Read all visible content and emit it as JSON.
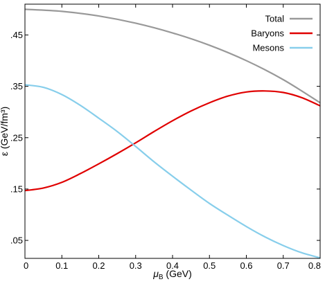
{
  "chart_data": {
    "type": "line",
    "xlabel": "μ",
    "xlabel_sub": "B",
    "xlabel_unit": " (GeV)",
    "ylabel": "ε (GeV/fm³)",
    "xlim": [
      0,
      0.8
    ],
    "ylim": [
      0.015,
      0.51
    ],
    "xticks": [
      0,
      0.1,
      0.2,
      0.3,
      0.4,
      0.5,
      0.6,
      0.7,
      0.8
    ],
    "xtick_labels": [
      "0",
      "0.1",
      "0.2",
      "0.3",
      "0.4",
      "0.5",
      "0.6",
      "0.7",
      "0.8"
    ],
    "yticks": [
      0.05,
      0.15,
      0.25,
      0.35,
      0.45
    ],
    "ytick_labels": [
      ".05",
      ".15",
      ".25",
      ".35",
      ".45"
    ],
    "grid": false,
    "legend_position": "top-right",
    "series": [
      {
        "name": "Total",
        "color": "#999999",
        "x": [
          0,
          0.1,
          0.2,
          0.3,
          0.4,
          0.5,
          0.6,
          0.7,
          0.8
        ],
        "y": [
          0.5,
          0.496,
          0.487,
          0.473,
          0.454,
          0.43,
          0.4,
          0.363,
          0.318
        ]
      },
      {
        "name": "Baryons",
        "color": "#e00000",
        "x": [
          0,
          0.05,
          0.1,
          0.15,
          0.2,
          0.25,
          0.3,
          0.35,
          0.4,
          0.45,
          0.5,
          0.55,
          0.6,
          0.65,
          0.7,
          0.75,
          0.8
        ],
        "y": [
          0.147,
          0.152,
          0.163,
          0.18,
          0.199,
          0.219,
          0.24,
          0.262,
          0.283,
          0.302,
          0.318,
          0.331,
          0.339,
          0.341,
          0.338,
          0.328,
          0.312
        ]
      },
      {
        "name": "Mesons",
        "color": "#87ceeb",
        "x": [
          0,
          0.05,
          0.1,
          0.15,
          0.2,
          0.25,
          0.3,
          0.35,
          0.4,
          0.45,
          0.5,
          0.55,
          0.6,
          0.65,
          0.7,
          0.75,
          0.8
        ],
        "y": [
          0.353,
          0.348,
          0.334,
          0.313,
          0.288,
          0.262,
          0.233,
          0.203,
          0.175,
          0.148,
          0.122,
          0.099,
          0.077,
          0.057,
          0.04,
          0.026,
          0.016
        ]
      }
    ]
  }
}
